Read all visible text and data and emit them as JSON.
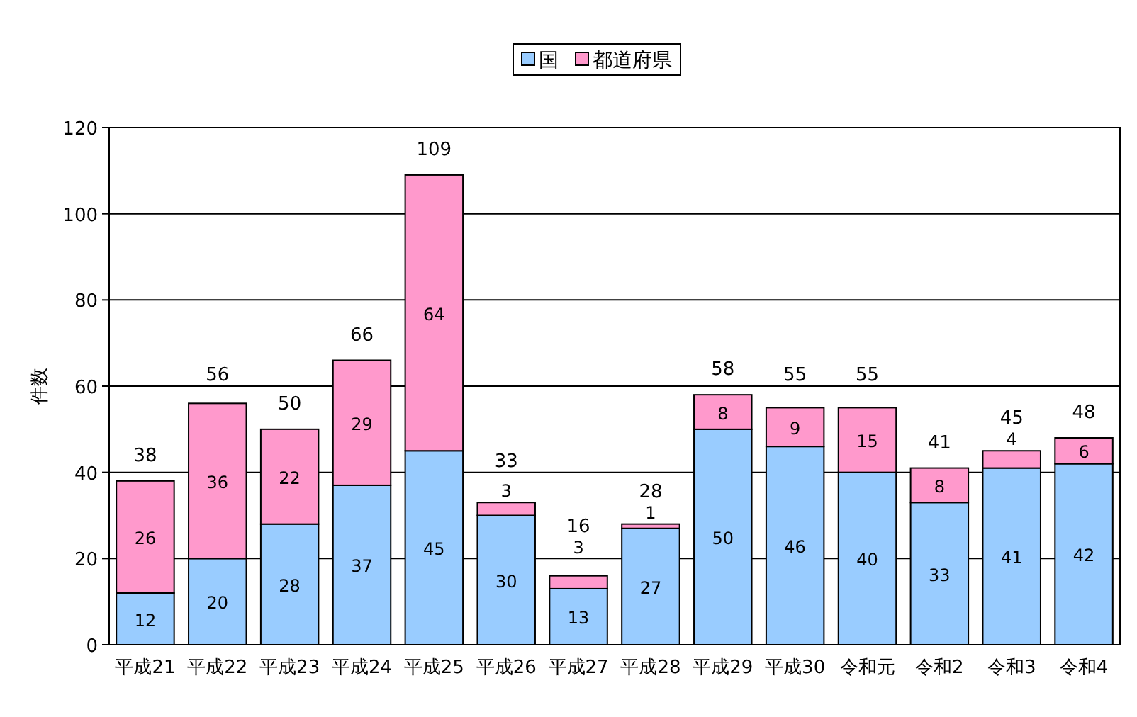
{
  "chart_data": {
    "type": "bar",
    "stacked": true,
    "categories": [
      "平成21",
      "平成22",
      "平成23",
      "平成24",
      "平成25",
      "平成26",
      "平成27",
      "平成28",
      "平成29",
      "平成30",
      "令和元",
      "令和2",
      "令和3",
      "令和4"
    ],
    "series": [
      {
        "name": "国",
        "color": "#99ccff",
        "values": [
          12,
          20,
          28,
          37,
          45,
          30,
          13,
          27,
          50,
          46,
          40,
          33,
          41,
          42
        ]
      },
      {
        "name": "都道府県",
        "color": "#ff99cc",
        "values": [
          26,
          36,
          22,
          29,
          64,
          3,
          3,
          1,
          8,
          9,
          15,
          8,
          4,
          6
        ]
      }
    ],
    "totals": [
      "38",
      "56",
      "50",
      "66",
      "109",
      "33",
      "16",
      "28",
      "58",
      "55",
      "55",
      "41",
      "45",
      "48"
    ],
    "ylabel": "件数",
    "ylim": [
      0,
      120
    ],
    "yticks": [
      0,
      20,
      40,
      60,
      80,
      100,
      120
    ],
    "grid": "y",
    "legend": "top",
    "data_labels": true
  }
}
